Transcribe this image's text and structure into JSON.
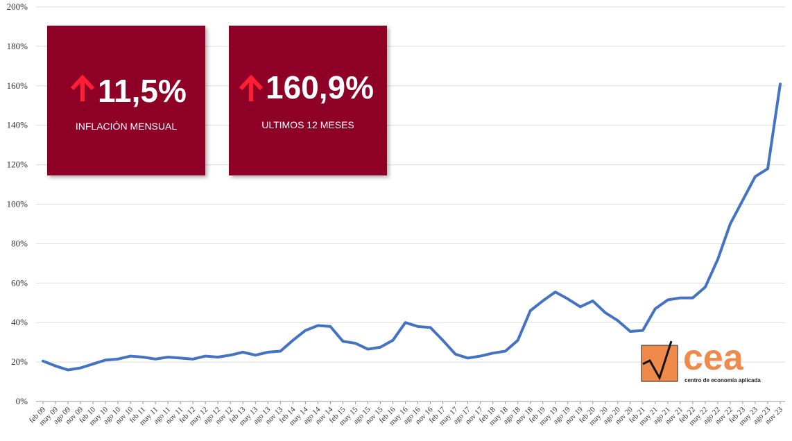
{
  "chart_data": {
    "type": "line",
    "categories": [
      "feb 09",
      "may 09",
      "ago 09",
      "nov 09",
      "feb 10",
      "may 10",
      "ago 10",
      "nov 10",
      "feb 11",
      "may 11",
      "ago 11",
      "nov 11",
      "feb 12",
      "may 12",
      "ago 12",
      "nov 12",
      "feb 13",
      "may 13",
      "ago 13",
      "nov 13",
      "feb 14",
      "may 14",
      "ago 14",
      "nov 14",
      "feb 15",
      "may 15",
      "ago 15",
      "nov 15",
      "feb 16",
      "may 16",
      "ago 16",
      "nov 16",
      "feb 17",
      "may 17",
      "ago 17",
      "nov 17",
      "feb 18",
      "may 18",
      "ago 18",
      "nov 18",
      "feb 19",
      "may 19",
      "ago 19",
      "nov 19",
      "feb 20",
      "may 20",
      "ago 20",
      "nov 20",
      "feb 21",
      "may 21",
      "ago 21",
      "nov 21",
      "feb 22",
      "may 22",
      "ago 22",
      "nov 22",
      "feb 23",
      "may 23",
      "ago 23",
      "nov 23"
    ],
    "series": [
      {
        "color": "#4472c4",
        "values": [
          20.5,
          18,
          16,
          17,
          19,
          21,
          21.5,
          23,
          22.5,
          21.5,
          22.5,
          22,
          21.5,
          23,
          22.5,
          23.5,
          25,
          23.5,
          25,
          25.5,
          31,
          36,
          38.5,
          38,
          30.5,
          29.5,
          26.5,
          27.5,
          31,
          40,
          38,
          37.5,
          31,
          24,
          22,
          23,
          24.5,
          25.5,
          31,
          46,
          51,
          55.5,
          52,
          48,
          51,
          45,
          41,
          35.5,
          36,
          47,
          51.5,
          52.5,
          52.5,
          58,
          72,
          90,
          102,
          114,
          118,
          160.9
        ]
      }
    ],
    "ylim": [
      0,
      200
    ],
    "yticks": [
      {
        "value": 0,
        "label": "0%"
      },
      {
        "value": 20,
        "label": "20%"
      },
      {
        "value": 40,
        "label": "40%"
      },
      {
        "value": 60,
        "label": "60%"
      },
      {
        "value": 80,
        "label": "80%"
      },
      {
        "value": 100,
        "label": "100%"
      },
      {
        "value": 120,
        "label": "120%"
      },
      {
        "value": 140,
        "label": "140%"
      },
      {
        "value": 160,
        "label": "160%"
      },
      {
        "value": 180,
        "label": "180%"
      },
      {
        "value": 200,
        "label": "200%"
      }
    ],
    "grid": true,
    "annotations": [
      {
        "value": "11,5%",
        "label": "INFLACIÓN MENSUAL"
      },
      {
        "value": "160,9%",
        "label": "ULTIMOS 12 MESES"
      }
    ],
    "logo": {
      "name": "cea",
      "subtitle": "centro de economía aplicada"
    }
  }
}
